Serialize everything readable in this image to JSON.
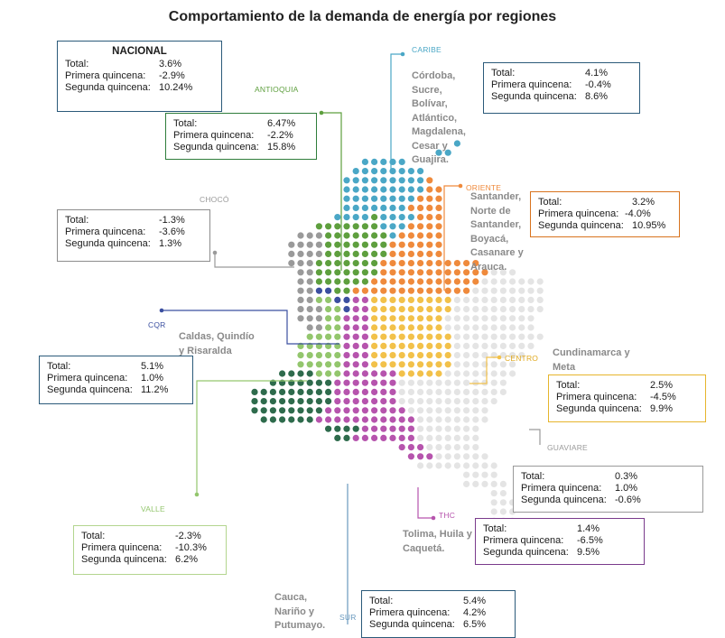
{
  "title": "Comportamiento de la demanda de energía por regiones",
  "colors": {
    "caribe": "#4aa7c6",
    "antioquia": "#5e9f3e",
    "choco": "#9a9a9a",
    "oriente": "#ef8a3c",
    "cqr": "#3b4fa0",
    "centro": "#f2c14a",
    "valle": "#93c66d",
    "sur": "#2e6b4c",
    "thc": "#b654ad",
    "guaviare": "#e4e4e4"
  },
  "labels": {
    "total": "Total:",
    "primera": "Primera quincena:",
    "segunda": "Segunda quincena:"
  },
  "nacional": {
    "name": "NACIONAL",
    "total": "3.6%",
    "primera": "-2.9%",
    "segunda": "10.24%"
  },
  "regions": {
    "caribe": {
      "name": "CARIBE",
      "desc": "Córdoba, Sucre, Bolívar, Atlántico, Magdalena, Cesar y Guajira.",
      "total": "4.1%",
      "primera": "-0.4%",
      "segunda": "8.6%"
    },
    "antioquia": {
      "name": "ANTIOQUIA",
      "total": "6.47%",
      "primera": "-2.2%",
      "segunda": "15.8%"
    },
    "choco": {
      "name": "CHOCÓ",
      "total": "-1.3%",
      "primera": "-3.6%",
      "segunda": "1.3%"
    },
    "oriente": {
      "name": "ORIENTE",
      "desc": "Santander, Norte de Santander, Boyacá, Casanare y Arauca.",
      "total": "3.2%",
      "primera": "-4.0%",
      "segunda": "10.95%"
    },
    "cqr": {
      "name": "CQR",
      "desc": "Caldas, Quindío y Risaralda",
      "total": "5.1%",
      "primera": "1.0%",
      "segunda": "11.2%"
    },
    "centro": {
      "name": "CENTRO",
      "desc": "Cundinamarca y Meta",
      "total": "2.5%",
      "primera": "-4.5%",
      "segunda": "9.9%"
    },
    "guaviare": {
      "name": "GUAVIARE",
      "total": "0.3%",
      "primera": "1.0%",
      "segunda": "-0.6%"
    },
    "valle": {
      "name": "VALLE",
      "total": "-2.3%",
      "primera": "-10.3%",
      "segunda": "6.2%"
    },
    "thc": {
      "name": "THC",
      "desc": "Tolima, Huila y Caquetá.",
      "total": "1.4%",
      "primera": "-6.5%",
      "segunda": "9.5%"
    },
    "sur": {
      "name": "SUR",
      "desc": "Cauca, Nariño y Putumayo.",
      "total": "5.4%",
      "primera": "4.2%",
      "segunda": "6.5%"
    }
  }
}
